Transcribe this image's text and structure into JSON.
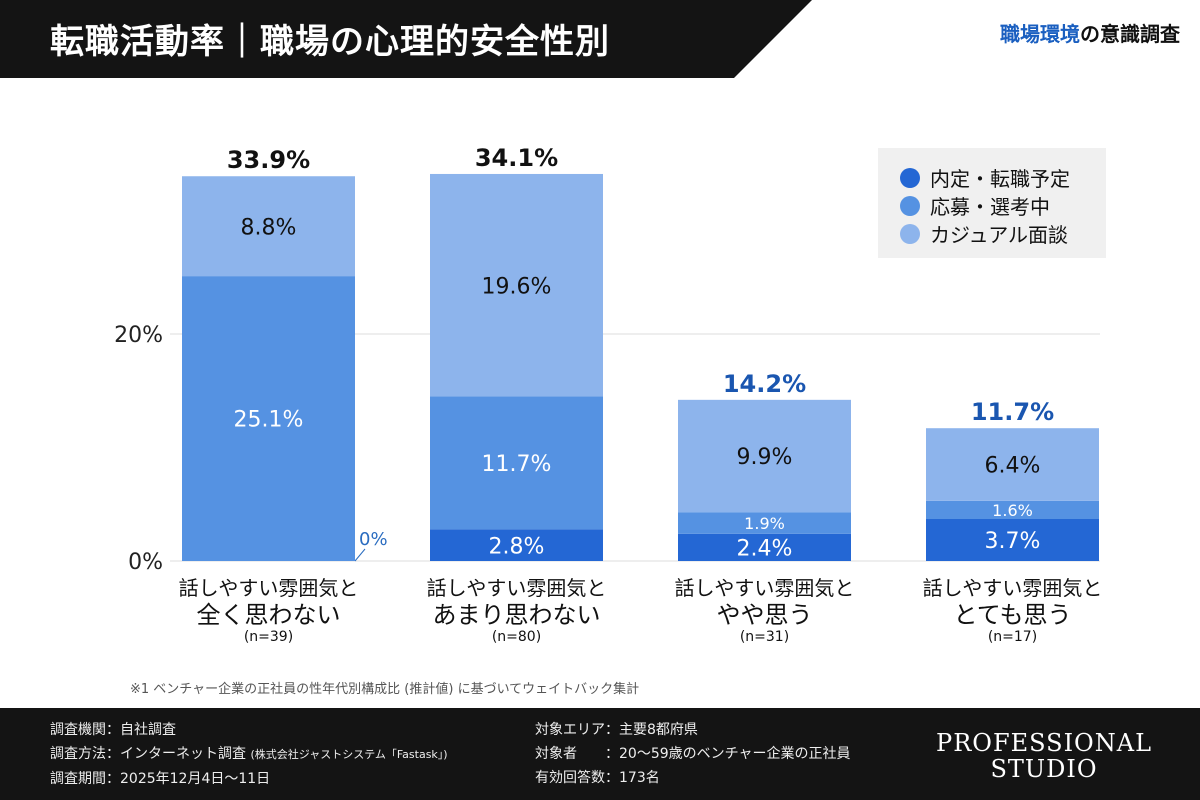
{
  "header": {
    "title": "転職活動率｜職場の心理的安全性別",
    "brand_accent": "職場環境",
    "brand_rest": "の意識調査"
  },
  "chart_data": {
    "type": "stacked-bar",
    "categories": [
      {
        "line1": "話しやすい雰囲気と",
        "line2": "全く思わない",
        "n": "(n=39)"
      },
      {
        "line1": "話しやすい雰囲気と",
        "line2": "あまり思わない",
        "n": "(n=80)"
      },
      {
        "line1": "話しやすい雰囲気と",
        "line2": "やや思う",
        "n": "(n=31)"
      },
      {
        "line1": "話しやすい雰囲気と",
        "line2": "とても思う",
        "n": "(n=17)"
      }
    ],
    "series": [
      {
        "name": "内定・転職予定",
        "color": "#2467d4",
        "values": [
          0,
          2.8,
          2.4,
          3.7
        ],
        "labels": [
          "0%",
          "2.8%",
          "2.4%",
          "3.7%"
        ]
      },
      {
        "name": "応募・選考中",
        "color": "#5592e2",
        "values": [
          25.1,
          11.7,
          1.9,
          1.6
        ],
        "labels": [
          "25.1%",
          "11.7%",
          "1.9%",
          "1.6%"
        ]
      },
      {
        "name": "カジュアル面談",
        "color": "#8db4ec",
        "values": [
          8.8,
          19.6,
          9.9,
          6.4
        ],
        "labels": [
          "8.8%",
          "19.6%",
          "9.9%",
          "6.4%"
        ]
      }
    ],
    "totals": [
      "33.9%",
      "34.1%",
      "14.2%",
      "11.7%"
    ],
    "total_colors": [
      "#111111",
      "#111111",
      "#1a56b0",
      "#1a56b0"
    ],
    "yticks": [
      {
        "value": 0,
        "label": "0%"
      },
      {
        "value": 20,
        "label": "20%"
      }
    ],
    "ylim": [
      0,
      37
    ],
    "legend": "top-right"
  },
  "note": "※1 ベンチャー企業の正社員の性年代別構成比 (推計値) に基づいてウェイトバック集計",
  "footer": {
    "left": [
      "調査機関：自社調査",
      "調査方法：インターネット調査",
      "調査期間：2025年12月4日〜11日"
    ],
    "method_small": "(株式会社ジャストシステム「Fastask」)",
    "right": [
      "対象エリア：主要8都府県",
      "対象者　　：20〜59歳のベンチャー企業の正社員",
      "有効回答数：173名"
    ],
    "logo": [
      "PROFESSIONAL",
      "STUDIO"
    ]
  }
}
